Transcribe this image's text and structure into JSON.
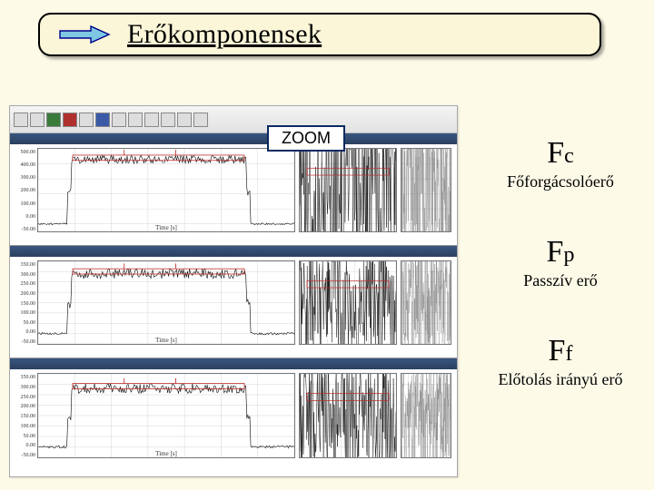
{
  "title": "Erőkomponensek",
  "zoom_label": "ZOOM",
  "forces": [
    {
      "symbol": "F",
      "sub": "c",
      "desc": "Főforgácsolóerő"
    },
    {
      "symbol": "F",
      "sub": "p",
      "desc": "Passzív erő"
    },
    {
      "symbol": "F",
      "sub": "f",
      "desc": "Előtolás irányú erő"
    }
  ],
  "channels": [
    {
      "ylim": [
        -50,
        500
      ],
      "yticks": [
        "500.00",
        "400.00",
        "300.00",
        "200.00",
        "100.00",
        "0.00",
        "-50.00"
      ],
      "xlabel": "Time [s]",
      "xticks": [
        1,
        2,
        3,
        4,
        5,
        6,
        7
      ],
      "plateau_low": 0,
      "plateau_high": 430,
      "rise_x": 0.12,
      "fall_x": 0.82,
      "noise_amp_main": 28,
      "noise_amp_zoom": 60,
      "main_color": "#101010",
      "red": "#c02828",
      "grid_color": "#d6d6d6",
      "show_zoom2": true
    },
    {
      "ylim": [
        -50,
        350
      ],
      "yticks": [
        "350.00",
        "300.00",
        "250.00",
        "200.00",
        "150.00",
        "100.00",
        "50.00",
        "0.00",
        "-50.00"
      ],
      "xlabel": "Time [s]",
      "xticks": [
        1,
        2,
        3,
        4,
        5,
        6,
        7
      ],
      "plateau_low": 0,
      "plateau_high": 290,
      "rise_x": 0.12,
      "fall_x": 0.82,
      "noise_amp_main": 24,
      "noise_amp_zoom": 55,
      "main_color": "#101010",
      "red": "#c02828",
      "grid_color": "#d6d6d6",
      "show_zoom2": false
    },
    {
      "ylim": [
        -50,
        350
      ],
      "yticks": [
        "350.00",
        "300.00",
        "250.00",
        "200.00",
        "150.00",
        "100.00",
        "50.00",
        "0.00",
        "-50.00"
      ],
      "xlabel": "Time [s]",
      "xticks": [
        1,
        2,
        3,
        4,
        5,
        6,
        7
      ],
      "plateau_low": 0,
      "plateau_high": 280,
      "rise_x": 0.12,
      "fall_x": 0.82,
      "noise_amp_main": 24,
      "noise_amp_zoom": 55,
      "main_color": "#101010",
      "red": "#c02828",
      "grid_color": "#d6d6d6",
      "show_zoom2": false
    }
  ],
  "colors": {
    "page_bg": "#fdfae8",
    "title_bg": "#fbf6d8",
    "zoom_border": "#0b2a63",
    "arrow_fill": "#7ec8e3",
    "arrow_stroke": "#00008b"
  }
}
